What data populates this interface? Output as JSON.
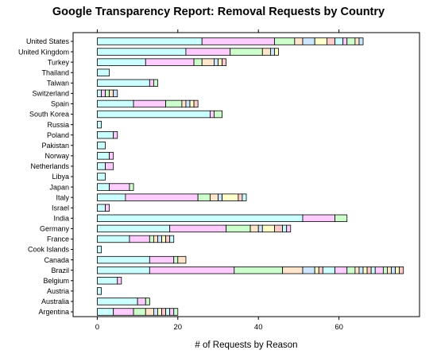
{
  "chart_data": {
    "type": "bar",
    "orientation": "horizontal",
    "stacked": true,
    "title": "Google Transparency Report: Removal Requests by Country",
    "xlabel": "# of Requests by Reason",
    "ylabel": "",
    "xlim": [
      -6,
      80
    ],
    "xticks": [
      0,
      20,
      40,
      60
    ],
    "grid": false,
    "legend": "none",
    "palette": [
      "#ccffff",
      "#ffccff",
      "#ccffcc",
      "#ffe5cc",
      "#cce6ff",
      "#ffffcc",
      "#ffcccc"
    ],
    "categories": [
      "United States",
      "United Kingdom",
      "Turkey",
      "Thailand",
      "Taiwan",
      "Switzerland",
      "Spain",
      "South Korea",
      "Russia",
      "Poland",
      "Pakistan",
      "Norway",
      "Netherlands",
      "Libya",
      "Japan",
      "Italy",
      "Israel",
      "India",
      "Germany",
      "France",
      "Cook Islands",
      "Canada",
      "Brazil",
      "Belgium",
      "Austria",
      "Australia",
      "Argentina"
    ],
    "segments": [
      [
        26,
        18,
        5,
        2,
        3,
        3,
        2,
        2,
        1,
        2,
        1,
        1
      ],
      [
        22,
        11,
        8,
        2,
        1,
        1
      ],
      [
        12,
        12,
        2,
        3,
        1,
        1,
        1
      ],
      [
        3
      ],
      [
        13,
        1,
        1
      ],
      [
        1,
        1,
        1,
        1,
        1
      ],
      [
        9,
        8,
        4,
        1,
        1,
        1,
        1
      ],
      [
        28,
        1,
        2
      ],
      [
        1
      ],
      [
        4,
        1
      ],
      [
        2
      ],
      [
        3,
        1
      ],
      [
        2,
        2
      ],
      [
        2
      ],
      [
        3,
        5,
        1
      ],
      [
        7,
        18,
        3,
        2,
        1,
        4,
        1,
        1
      ],
      [
        2,
        1
      ],
      [
        51,
        8,
        3
      ],
      [
        18,
        14,
        6,
        2,
        1,
        3,
        2,
        1,
        1
      ],
      [
        8,
        5,
        1,
        1,
        1,
        1,
        1,
        1
      ],
      [
        1
      ],
      [
        13,
        6,
        1,
        2
      ],
      [
        13,
        21,
        12,
        5,
        3,
        1,
        1,
        3,
        3,
        2,
        1,
        1,
        1,
        1,
        1,
        2,
        1,
        1,
        1,
        1,
        1
      ],
      [
        5,
        1
      ],
      [
        1
      ],
      [
        10,
        2,
        1
      ],
      [
        4,
        5,
        3,
        2,
        1,
        1,
        1,
        1,
        1,
        1
      ]
    ]
  }
}
